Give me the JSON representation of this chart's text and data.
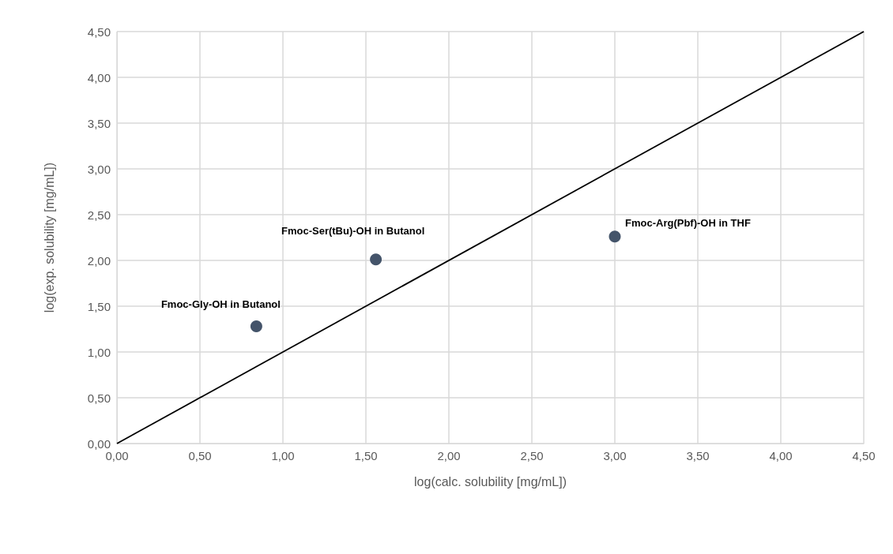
{
  "chart_data": {
    "type": "scatter",
    "xlabel": "log(calc. solubility [mg/mL])",
    "ylabel": "log(exp. solubility [mg/mL])",
    "series": [
      {
        "marker": "circle",
        "color": "#44546a",
        "x": [
          0.84,
          1.56,
          3.0
        ],
        "values": [
          1.28,
          2.01,
          2.26
        ]
      },
      {
        "type": "line",
        "marker": "none",
        "color": "#000000",
        "x": [
          0,
          4.5
        ],
        "values": [
          0,
          4.5
        ]
      }
    ],
    "annotations": [
      {
        "text": "Fmoc-Gly-OH in Butanol",
        "x": 0.84,
        "y": 1.28
      },
      {
        "text": "Fmoc-Ser(tBu)-OH in Butanol",
        "x": 1.56,
        "y": 2.01
      },
      {
        "text": "Fmoc-Arg(Pbf)-OH in THF",
        "x": 3.0,
        "y": 2.26
      }
    ],
    "xlim": [
      0,
      4.5
    ],
    "xticks": [
      {
        "value": 0,
        "label": "0,00"
      },
      {
        "value": 0.5,
        "label": "0,50"
      },
      {
        "value": 1,
        "label": "1,00"
      },
      {
        "value": 1.5,
        "label": "1,50"
      },
      {
        "value": 2,
        "label": "2,00"
      },
      {
        "value": 2.5,
        "label": "2,50"
      },
      {
        "value": 3,
        "label": "3,00"
      },
      {
        "value": 3.5,
        "label": "3,50"
      },
      {
        "value": 4,
        "label": "4,00"
      },
      {
        "value": 4.5,
        "label": "4,50"
      }
    ],
    "ylim": [
      0,
      4.5
    ],
    "yticks": [
      {
        "value": 0,
        "label": "0,00"
      },
      {
        "value": 0.5,
        "label": "0,50"
      },
      {
        "value": 1,
        "label": "1,00"
      },
      {
        "value": 1.5,
        "label": "1,50"
      },
      {
        "value": 2,
        "label": "2,00"
      },
      {
        "value": 2.5,
        "label": "2,50"
      },
      {
        "value": 3,
        "label": "3,00"
      },
      {
        "value": 3.5,
        "label": "3,50"
      },
      {
        "value": 4,
        "label": "4,00"
      },
      {
        "value": 4.5,
        "label": "4,50"
      }
    ],
    "grid": true
  }
}
